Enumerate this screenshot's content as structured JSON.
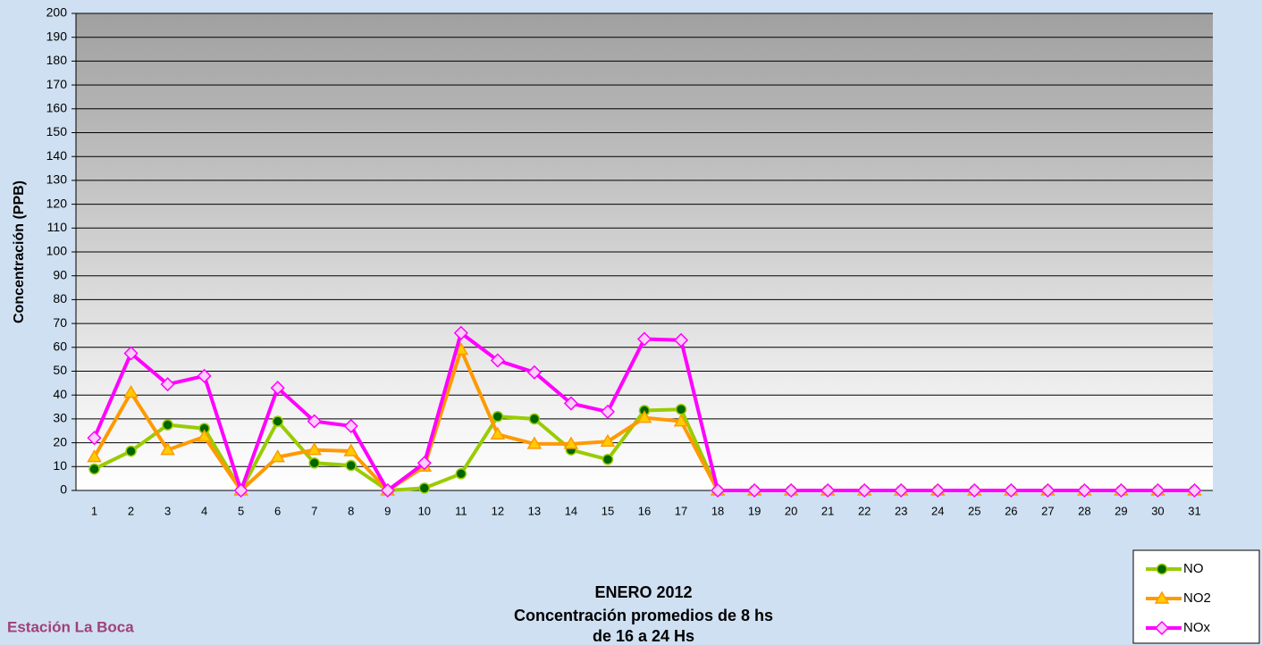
{
  "chart_data": {
    "type": "line",
    "title": [
      "ENERO 2012",
      "Concentración promedios de 8 hs",
      "de 16 a 24 Hs"
    ],
    "annotation": "Estación La Boca",
    "y_label": "Concentración  (PPB)",
    "categories": [
      "1",
      "2",
      "3",
      "4",
      "5",
      "6",
      "7",
      "8",
      "9",
      "10",
      "11",
      "12",
      "13",
      "14",
      "15",
      "16",
      "17",
      "18",
      "19",
      "20",
      "21",
      "22",
      "23",
      "24",
      "25",
      "26",
      "27",
      "28",
      "29",
      "30",
      "31"
    ],
    "series": [
      {
        "name": "NO",
        "color": "#99cc00",
        "marker": "circle",
        "marker_color": "#006600",
        "values": [
          9,
          16.5,
          27.5,
          26,
          0,
          29,
          11.5,
          10.5,
          0,
          1,
          7,
          31,
          30,
          17,
          13,
          33.5,
          34,
          0,
          0,
          0,
          0,
          0,
          0,
          0,
          0,
          0,
          0,
          0,
          0,
          0,
          0
        ]
      },
      {
        "name": "NO2",
        "color": "#ff9900",
        "marker": "triangle",
        "marker_color": "#ffcc00",
        "values": [
          14,
          41,
          17,
          22.5,
          0,
          14,
          17,
          16.5,
          0,
          10,
          59,
          23.5,
          19.5,
          19.5,
          20.5,
          30.5,
          29,
          0,
          0,
          0,
          0,
          0,
          0,
          0,
          0,
          0,
          0,
          0,
          0,
          0,
          0
        ]
      },
      {
        "name": "NOx",
        "color": "#ff00ff",
        "marker": "diamond",
        "marker_color": "#ffccff",
        "values": [
          22,
          57.5,
          44.5,
          48,
          0,
          43,
          29,
          27,
          0,
          11.5,
          66,
          54.5,
          49.5,
          36.5,
          33,
          63.5,
          63,
          0,
          0,
          0,
          0,
          0,
          0,
          0,
          0,
          0,
          0,
          0,
          0,
          0,
          0
        ]
      }
    ],
    "ylim": [
      0,
      200
    ],
    "yticks": [
      0,
      10,
      20,
      30,
      40,
      50,
      60,
      70,
      80,
      90,
      100,
      110,
      120,
      130,
      140,
      150,
      160,
      170,
      180,
      190,
      200
    ],
    "grid": true,
    "legend": "bottom-right"
  }
}
